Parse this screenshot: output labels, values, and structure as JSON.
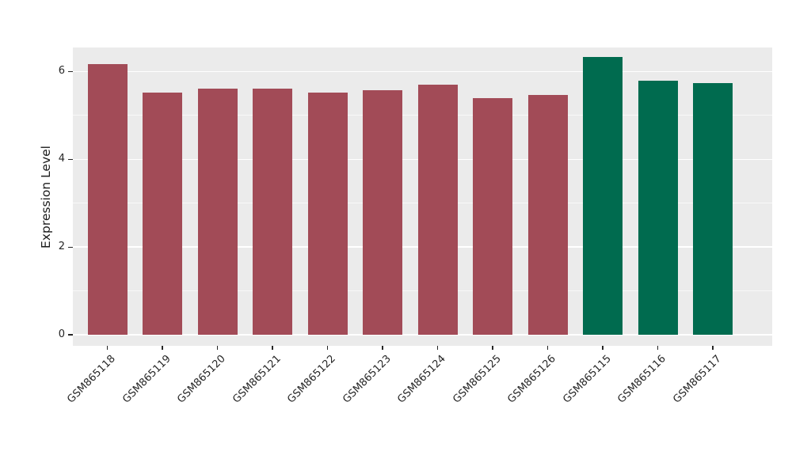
{
  "figure": {
    "background": "#FFFFFF"
  },
  "chart_data": {
    "type": "bar",
    "title": "",
    "xlabel": "",
    "ylabel": "Expression Level",
    "ylim": [
      0,
      6.55
    ],
    "yticks": [
      0,
      2,
      4,
      6
    ],
    "yticks_minor": [
      1,
      3,
      5
    ],
    "grid": true,
    "legend": false,
    "panel_bg": "#EBEBEB",
    "grid_major_color": "#FFFFFF",
    "grid_minor_color": "#FFFFFF",
    "tick_color": "#262626",
    "categories": [
      "GSM865118",
      "GSM865119",
      "GSM865120",
      "GSM865121",
      "GSM865122",
      "GSM865123",
      "GSM865124",
      "GSM865125",
      "GSM865126",
      "GSM865115",
      "GSM865116",
      "GSM865117"
    ],
    "values": [
      6.18,
      5.52,
      5.62,
      5.62,
      5.52,
      5.57,
      5.7,
      5.4,
      5.47,
      6.33,
      5.79,
      5.74
    ],
    "bar_colors": [
      "#A24B57",
      "#A24B57",
      "#A24B57",
      "#A24B57",
      "#A24B57",
      "#A24B57",
      "#A24B57",
      "#A24B57",
      "#A24B57",
      "#006B4F",
      "#006B4F",
      "#006B4F"
    ],
    "color_groups": [
      {
        "color": "#A24B57",
        "count": 9
      },
      {
        "color": "#006B4F",
        "count": 3
      }
    ]
  }
}
